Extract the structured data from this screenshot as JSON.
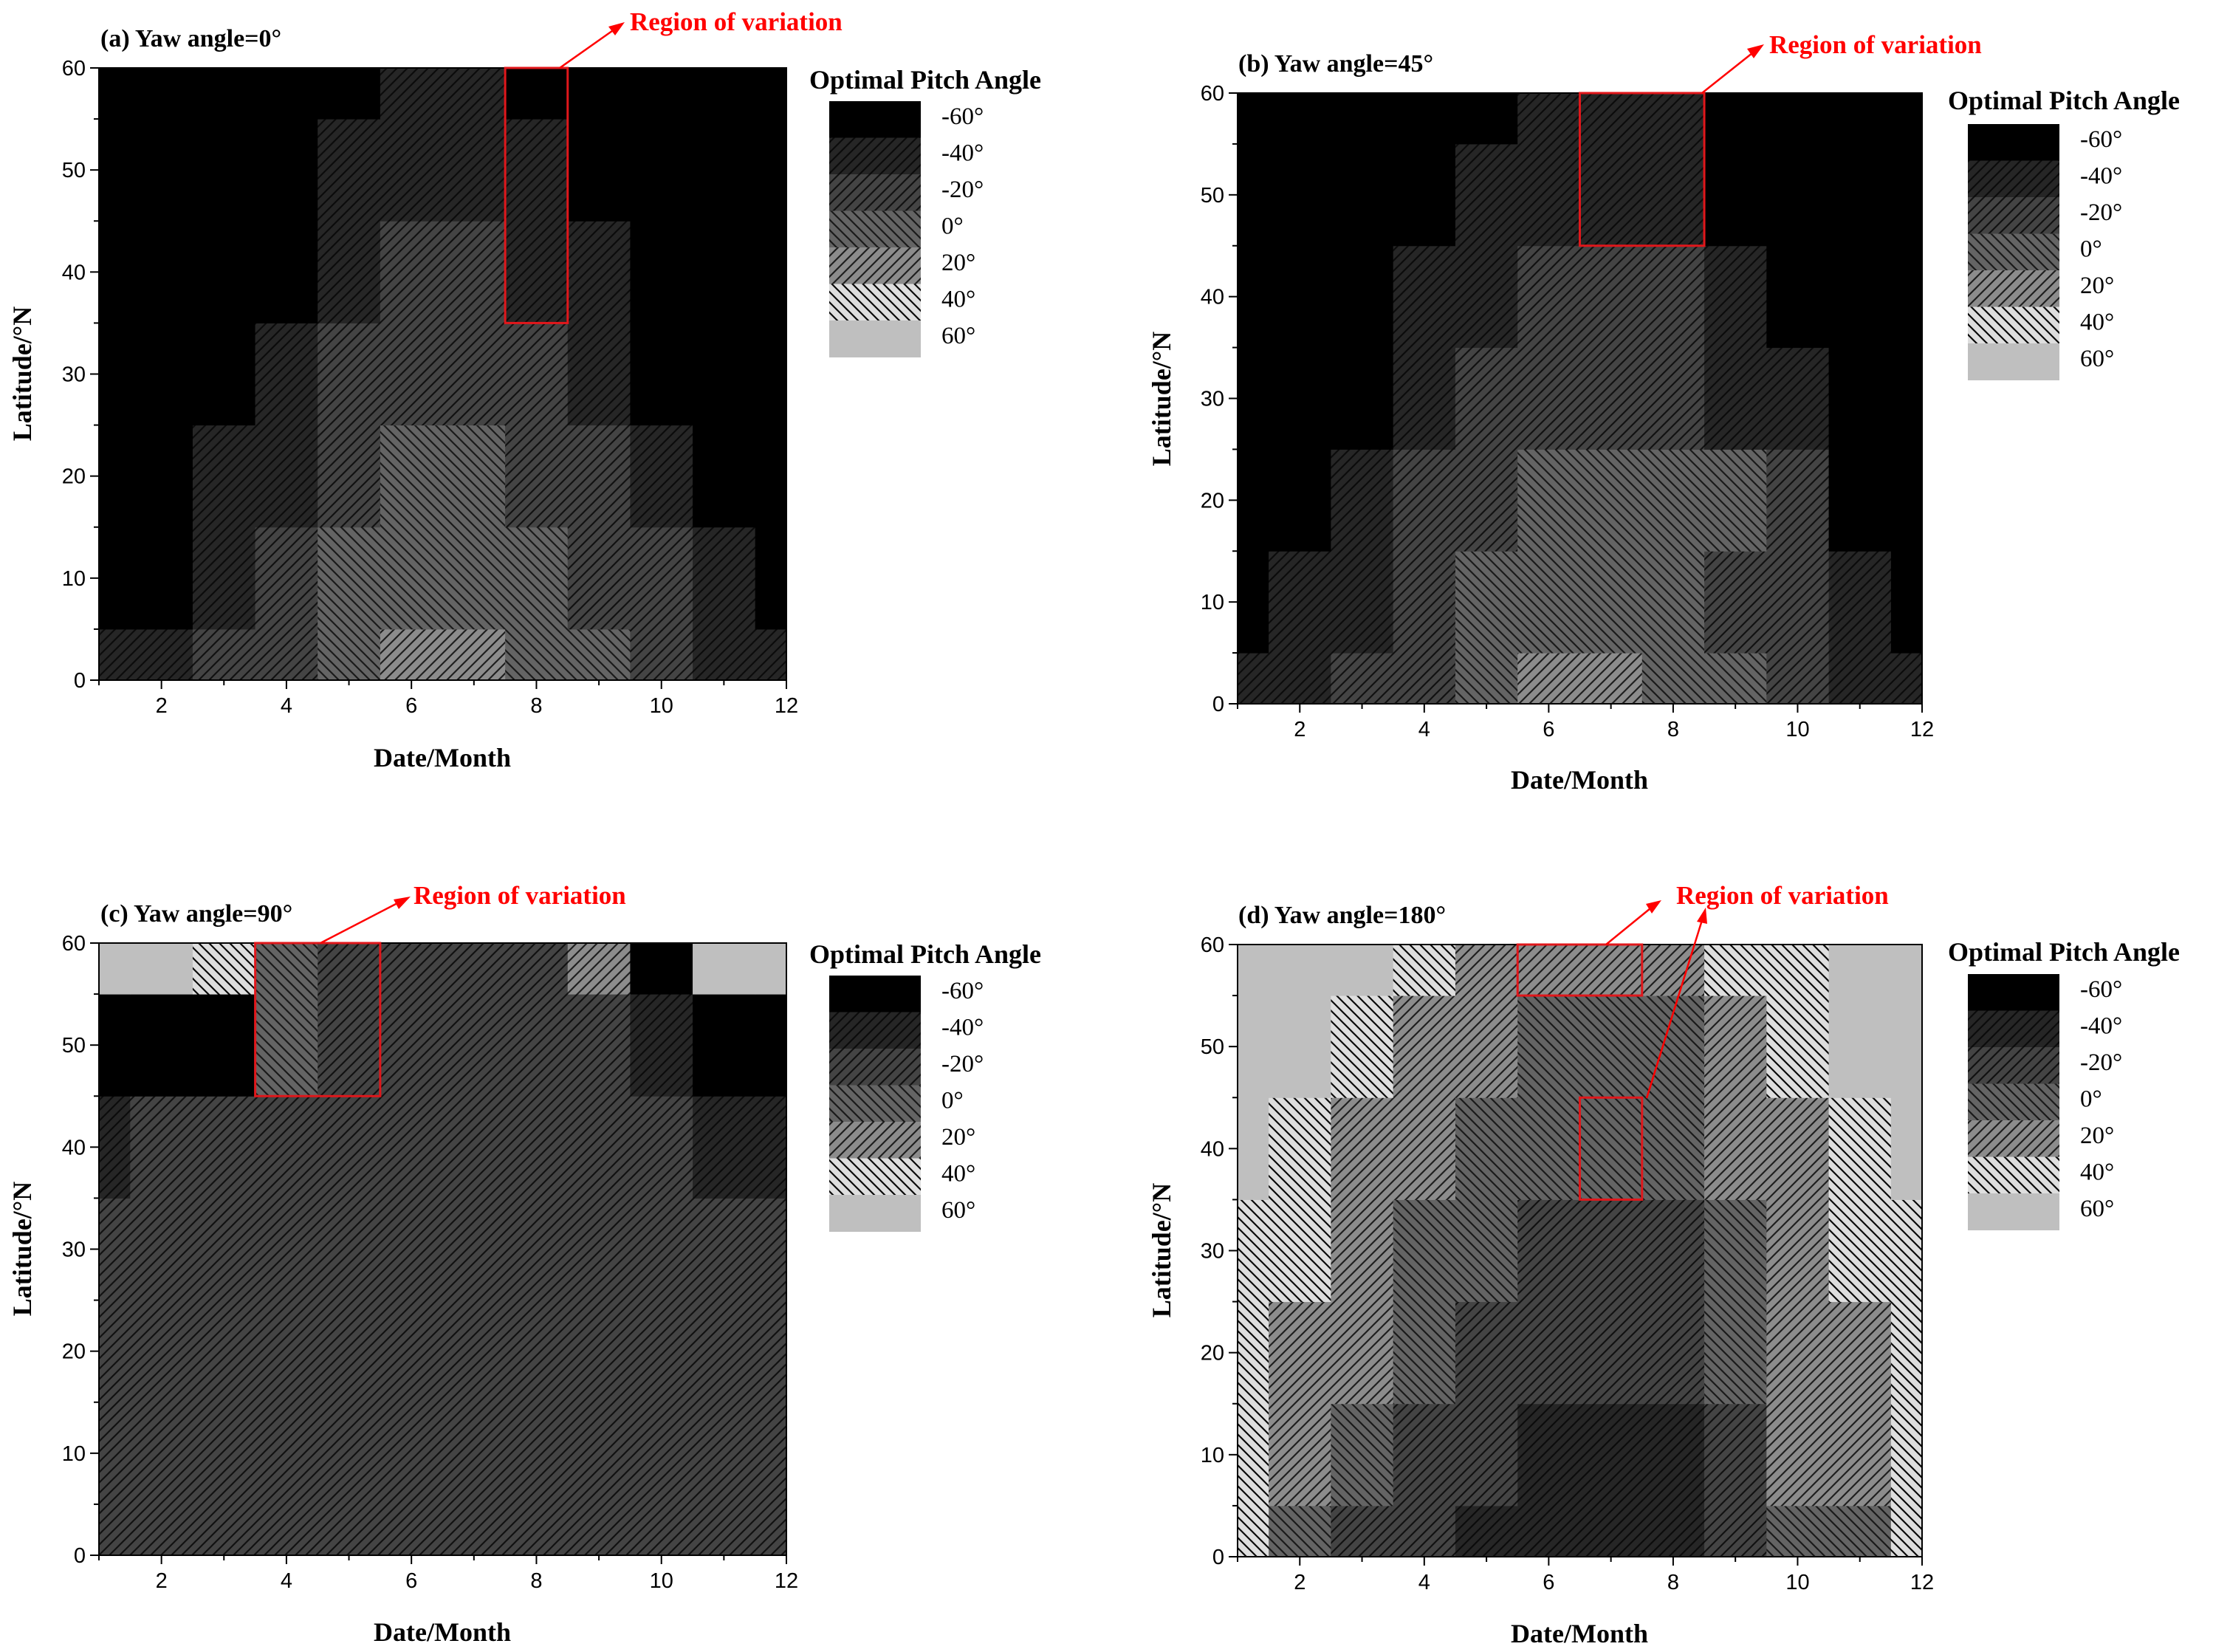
{
  "figure": {
    "levels": [
      "-60°",
      "-40°",
      "-20°",
      "0°",
      "20°",
      "40°",
      "60°"
    ],
    "level_values": [
      -60,
      -40,
      -20,
      0,
      20,
      40,
      60
    ],
    "colors": {
      "-60": "#000000",
      "-40": "#262626",
      "-20": "#444444",
      "0": "#646464",
      "20": "#8c8c8c",
      "40": "#dedede",
      "60": "#bfbfbf",
      "highlight": "#e0171b"
    }
  },
  "chart_data": [
    {
      "type": "heatmap",
      "title": "(a) Yaw angle=0°",
      "annotation": "Region of variation",
      "xlabel": "Date/Month",
      "ylabel": "Latitude/°N",
      "legend_title": "Optimal Pitch Angle",
      "xlim": [
        1,
        12
      ],
      "ylim": [
        0,
        60
      ],
      "xticks": [
        2,
        4,
        6,
        8,
        10,
        12
      ],
      "yticks": [
        0,
        10,
        20,
        30,
        40,
        50,
        60
      ],
      "months": [
        1,
        2,
        3,
        4,
        5,
        6,
        7,
        8,
        9,
        10,
        11,
        12
      ],
      "latitude_bands": [
        [
          0,
          5
        ],
        [
          5,
          15
        ],
        [
          15,
          25
        ],
        [
          25,
          35
        ],
        [
          35,
          45
        ],
        [
          45,
          55
        ],
        [
          55,
          60
        ]
      ],
      "values": [
        [
          -40,
          -40,
          -20,
          -20,
          0,
          20,
          20,
          0,
          0,
          -20,
          -40,
          -40
        ],
        [
          -60,
          -60,
          -40,
          -20,
          0,
          0,
          0,
          0,
          -20,
          -20,
          -40,
          -60
        ],
        [
          -60,
          -60,
          -40,
          -40,
          -20,
          0,
          0,
          -20,
          -20,
          -40,
          -60,
          -60
        ],
        [
          -60,
          -60,
          -60,
          -40,
          -20,
          -20,
          -20,
          -20,
          -40,
          -60,
          -60,
          -60
        ],
        [
          -60,
          -60,
          -60,
          -60,
          -40,
          -20,
          -20,
          -40,
          -40,
          -60,
          -60,
          -60
        ],
        [
          -60,
          -60,
          -60,
          -60,
          -40,
          -40,
          -40,
          -40,
          -60,
          -60,
          -60,
          -60
        ],
        [
          -60,
          -60,
          -60,
          -60,
          -60,
          -40,
          -40,
          -60,
          -60,
          -60,
          -60,
          -60
        ]
      ],
      "highlight_regions": [
        {
          "month": [
            7.5,
            8.5
          ],
          "latitude": [
            35,
            60
          ]
        }
      ]
    },
    {
      "type": "heatmap",
      "title": "(b) Yaw angle=45°",
      "annotation": "Region of variation",
      "xlabel": "Date/Month",
      "ylabel": "Latitude/°N",
      "legend_title": "Optimal Pitch Angle",
      "xlim": [
        1,
        12
      ],
      "ylim": [
        0,
        60
      ],
      "xticks": [
        2,
        4,
        6,
        8,
        10,
        12
      ],
      "yticks": [
        0,
        10,
        20,
        30,
        40,
        50,
        60
      ],
      "months": [
        1,
        2,
        3,
        4,
        5,
        6,
        7,
        8,
        9,
        10,
        11,
        12
      ],
      "latitude_bands": [
        [
          0,
          5
        ],
        [
          5,
          15
        ],
        [
          15,
          25
        ],
        [
          25,
          35
        ],
        [
          35,
          45
        ],
        [
          45,
          55
        ],
        [
          55,
          60
        ]
      ],
      "values": [
        [
          -40,
          -40,
          -20,
          -20,
          0,
          20,
          20,
          0,
          0,
          -20,
          -40,
          -40
        ],
        [
          -60,
          -40,
          -40,
          -20,
          0,
          0,
          0,
          0,
          -20,
          -20,
          -40,
          -60
        ],
        [
          -60,
          -60,
          -40,
          -20,
          -20,
          0,
          0,
          0,
          0,
          -20,
          -60,
          -60
        ],
        [
          -60,
          -60,
          -60,
          -40,
          -20,
          -20,
          -20,
          -20,
          -40,
          -40,
          -60,
          -60
        ],
        [
          -60,
          -60,
          -60,
          -40,
          -40,
          -20,
          -20,
          -20,
          -40,
          -60,
          -60,
          -60
        ],
        [
          -60,
          -60,
          -60,
          -60,
          -40,
          -40,
          -40,
          -40,
          -60,
          -60,
          -60,
          -60
        ],
        [
          -60,
          -60,
          -60,
          -60,
          -60,
          -40,
          -40,
          -40,
          -60,
          -60,
          -60,
          -60
        ]
      ],
      "highlight_regions": [
        {
          "month": [
            6.5,
            8.5
          ],
          "latitude": [
            45,
            60
          ]
        }
      ]
    },
    {
      "type": "heatmap",
      "title": "(c) Yaw angle=90°",
      "annotation": "Region of variation",
      "xlabel": "Date/Month",
      "ylabel": "Latitude/°N",
      "legend_title": "Optimal Pitch Angle",
      "xlim": [
        1,
        12
      ],
      "ylim": [
        0,
        60
      ],
      "xticks": [
        2,
        4,
        6,
        8,
        10,
        12
      ],
      "yticks": [
        0,
        10,
        20,
        30,
        40,
        50,
        60
      ],
      "months": [
        1,
        2,
        3,
        4,
        5,
        6,
        7,
        8,
        9,
        10,
        11,
        12
      ],
      "latitude_bands": [
        [
          0,
          5
        ],
        [
          5,
          15
        ],
        [
          15,
          25
        ],
        [
          25,
          35
        ],
        [
          35,
          45
        ],
        [
          45,
          55
        ],
        [
          55,
          60
        ]
      ],
      "values": [
        [
          -20,
          -20,
          -20,
          -20,
          -20,
          -20,
          -20,
          -20,
          -20,
          -20,
          -20,
          -20
        ],
        [
          -20,
          -20,
          -20,
          -20,
          -20,
          -20,
          -20,
          -20,
          -20,
          -20,
          -20,
          -20
        ],
        [
          -20,
          -20,
          -20,
          -20,
          -20,
          -20,
          -20,
          -20,
          -20,
          -20,
          -20,
          -20
        ],
        [
          -20,
          -20,
          -20,
          -20,
          -20,
          -20,
          -20,
          -20,
          -20,
          -20,
          -20,
          -20
        ],
        [
          -40,
          -20,
          -20,
          -20,
          -20,
          -20,
          -20,
          -20,
          -20,
          -20,
          -40,
          -40
        ],
        [
          -60,
          -60,
          -60,
          0,
          -20,
          -20,
          -20,
          -20,
          -20,
          -40,
          -60,
          -60
        ],
        [
          60,
          60,
          40,
          0,
          -20,
          -20,
          -20,
          -20,
          20,
          -60,
          60,
          60
        ]
      ],
      "highlight_regions": [
        {
          "month": [
            3.5,
            5.5
          ],
          "latitude": [
            45,
            60
          ]
        }
      ]
    },
    {
      "type": "heatmap",
      "title": "(d) Yaw angle=180°",
      "annotation": "Region of variation",
      "xlabel": "Date/Month",
      "ylabel": "Latitude/°N",
      "legend_title": "Optimal Pitch Angle",
      "xlim": [
        1,
        12
      ],
      "ylim": [
        0,
        60
      ],
      "xticks": [
        2,
        4,
        6,
        8,
        10,
        12
      ],
      "yticks": [
        0,
        10,
        20,
        30,
        40,
        50,
        60
      ],
      "months": [
        1,
        2,
        3,
        4,
        5,
        6,
        7,
        8,
        9,
        10,
        11,
        12
      ],
      "latitude_bands": [
        [
          0,
          5
        ],
        [
          5,
          15
        ],
        [
          15,
          25
        ],
        [
          25,
          35
        ],
        [
          35,
          45
        ],
        [
          45,
          55
        ],
        [
          55,
          60
        ]
      ],
      "values": [
        [
          40,
          0,
          -20,
          -20,
          -40,
          -40,
          -40,
          -40,
          -20,
          0,
          0,
          40
        ],
        [
          40,
          20,
          0,
          -20,
          -20,
          -40,
          -40,
          -40,
          -20,
          20,
          20,
          40
        ],
        [
          40,
          20,
          20,
          0,
          -20,
          -20,
          -20,
          -20,
          0,
          20,
          20,
          40
        ],
        [
          40,
          40,
          20,
          0,
          0,
          -20,
          -20,
          -20,
          0,
          20,
          40,
          40
        ],
        [
          60,
          40,
          20,
          20,
          0,
          0,
          0,
          0,
          20,
          20,
          40,
          60
        ],
        [
          60,
          60,
          40,
          20,
          20,
          0,
          0,
          0,
          20,
          40,
          60,
          60
        ],
        [
          60,
          60,
          60,
          40,
          20,
          20,
          20,
          20,
          40,
          40,
          60,
          60
        ]
      ],
      "highlight_regions": [
        {
          "month": [
            5.5,
            7.5
          ],
          "latitude": [
            55,
            60
          ]
        },
        {
          "month": [
            6.5,
            7.5
          ],
          "latitude": [
            35,
            45
          ]
        }
      ]
    }
  ]
}
